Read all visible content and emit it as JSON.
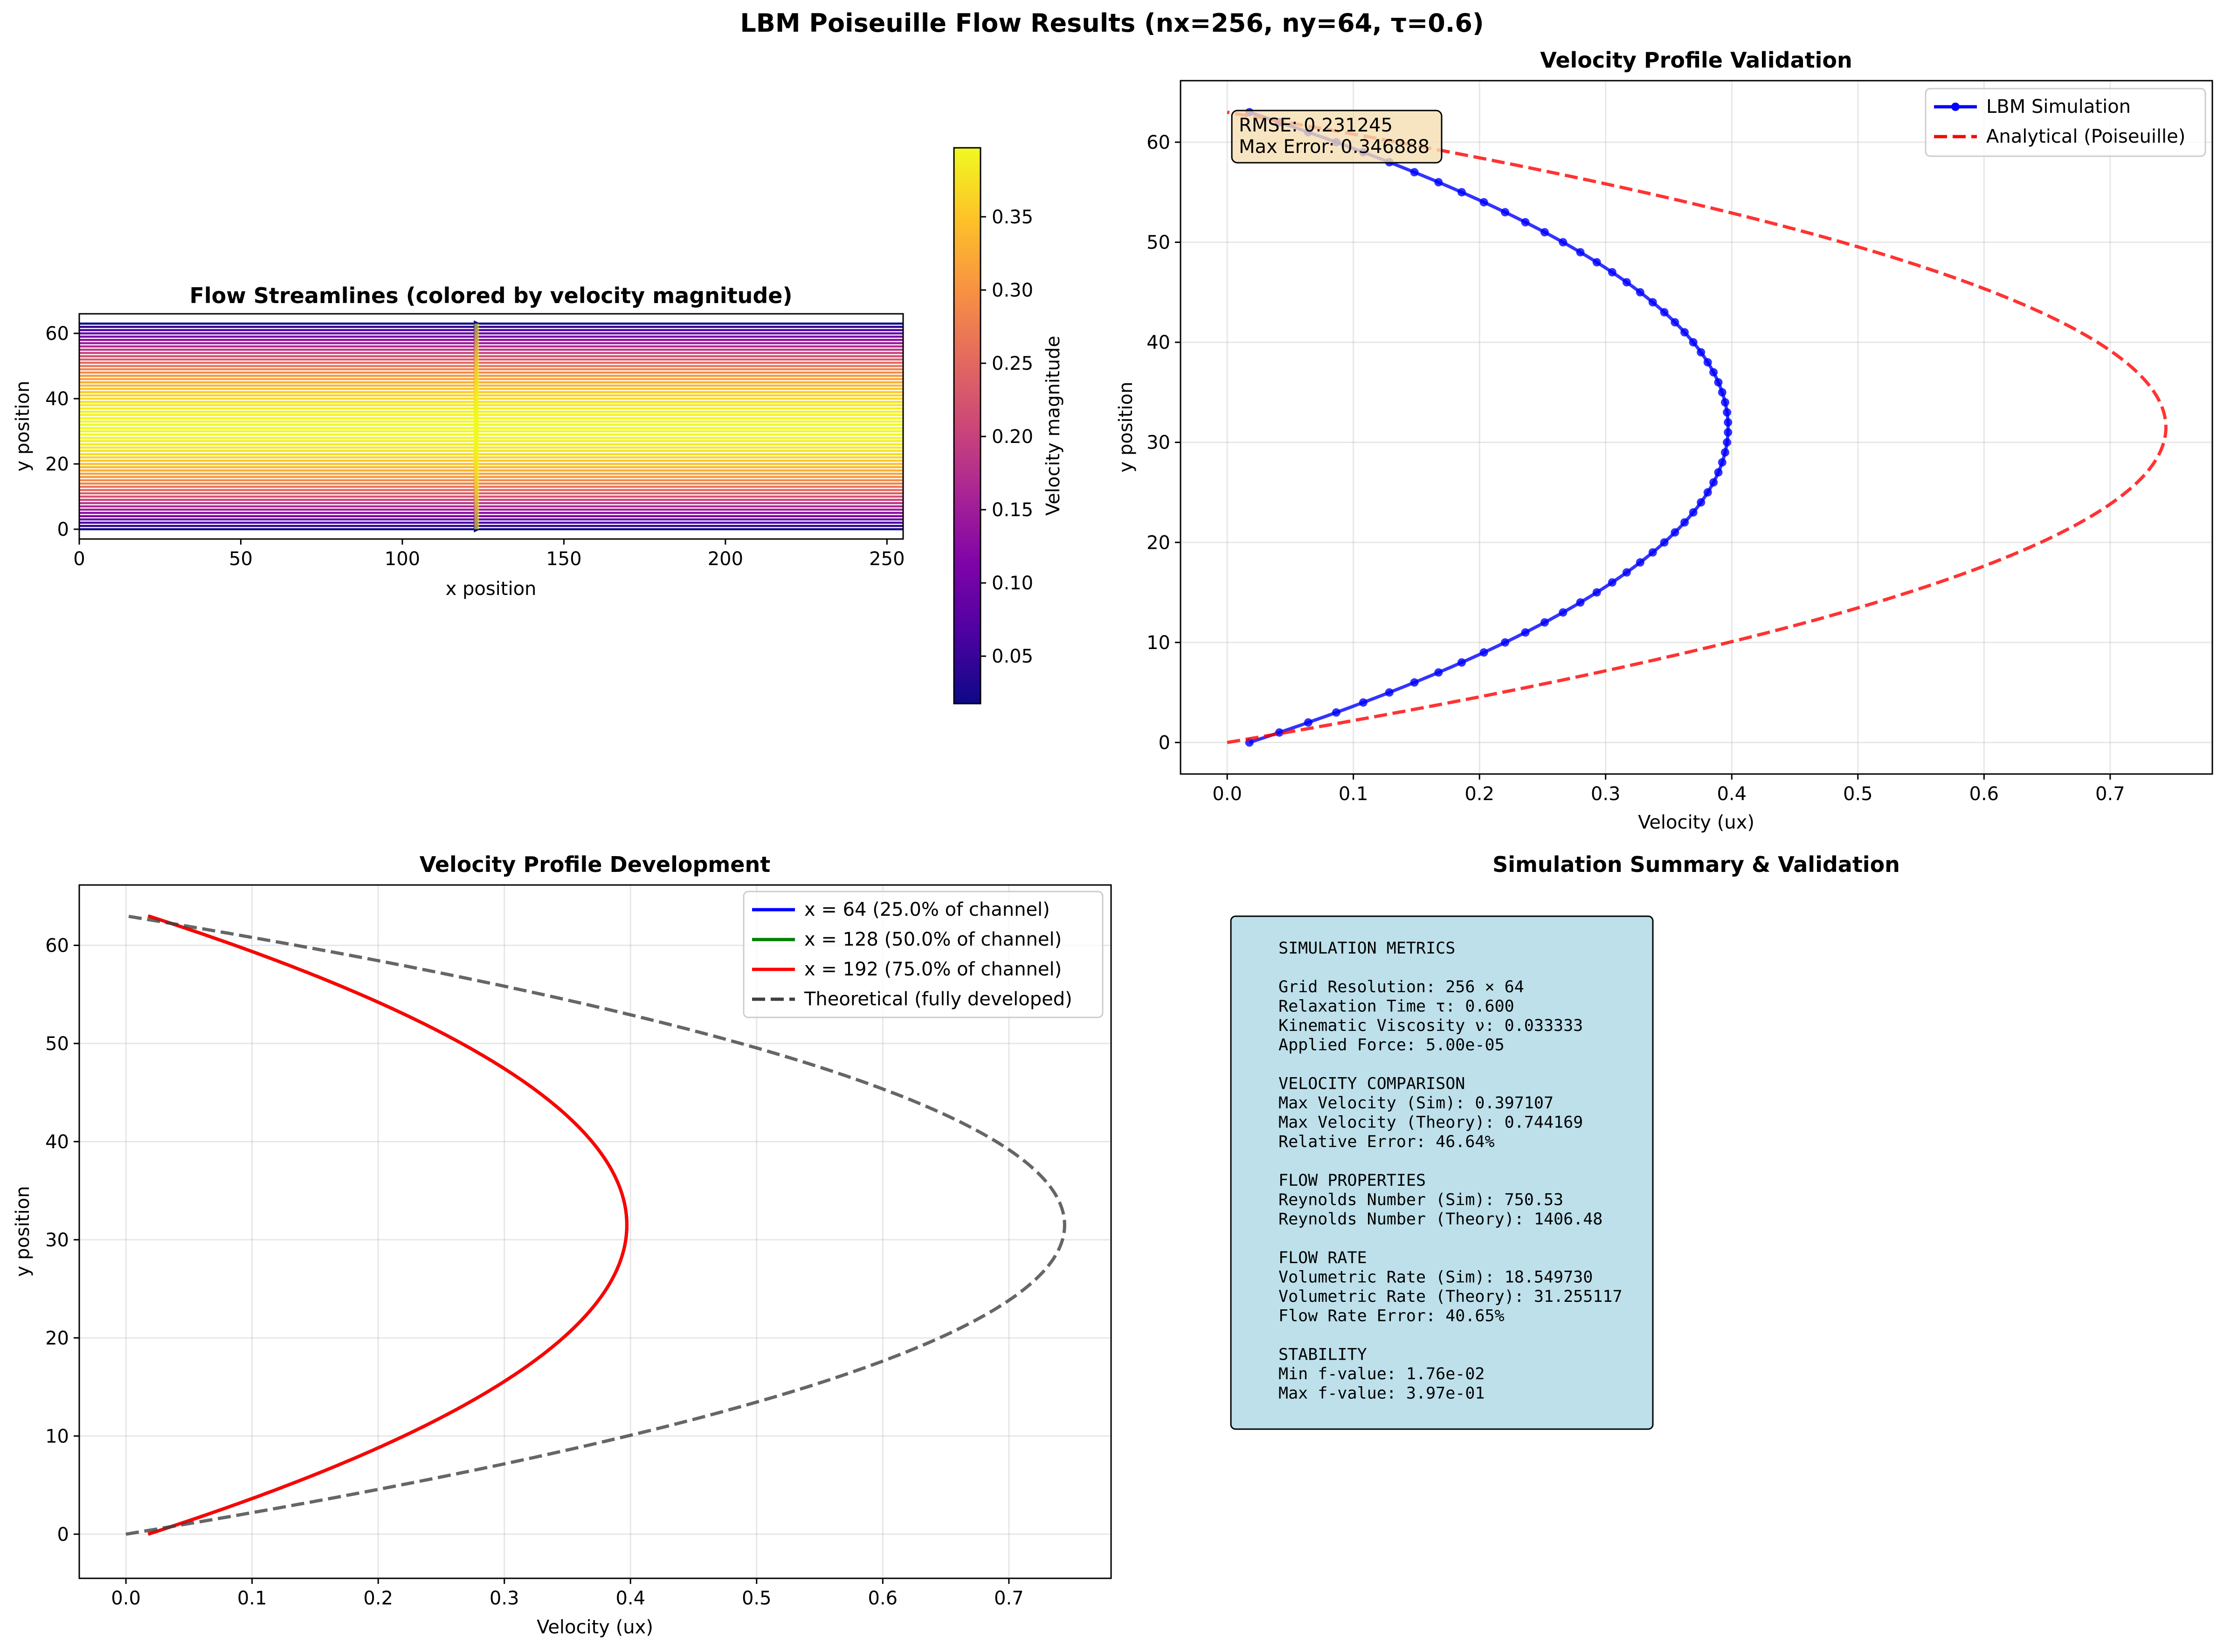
{
  "suptitle": "LBM Poiseuille Flow Results (nx=256, ny=64, τ=0.6)",
  "colors": {
    "sim": "#0000ff",
    "analytical": "#ff0000",
    "x64": "#0000ff",
    "x128": "#008000",
    "x192": "#ff0000",
    "theory": "#404040",
    "annotation_bg": "#f5deb3",
    "summary_bg": "#add8e6",
    "colormap": "plasma"
  },
  "chart_data": [
    {
      "id": "streamlines",
      "type": "streamlines",
      "title": "Flow Streamlines (colored by velocity magnitude)",
      "xlabel": "x position",
      "ylabel": "y position",
      "xlim": [
        0,
        255
      ],
      "ylim": [
        -3,
        66
      ],
      "xticks": [
        0,
        50,
        100,
        150,
        200,
        250
      ],
      "yticks": [
        0,
        20,
        40,
        60
      ],
      "streamline_y_start": 0,
      "streamline_y_end": 63,
      "streamline_x_range": [
        0,
        255
      ],
      "seed_x": 123,
      "umax": 0.397107,
      "colorbar": {
        "label": "Velocity magnitude",
        "range": [
          0.0176,
          0.397107
        ],
        "ticks": [
          0.05,
          0.1,
          0.15,
          0.2,
          0.25,
          0.3,
          0.35
        ],
        "tick_labels": [
          "0.05",
          "0.10",
          "0.15",
          "0.20",
          "0.25",
          "0.30",
          "0.35"
        ]
      }
    },
    {
      "id": "validation",
      "type": "line",
      "title": "Velocity Profile Validation",
      "xlabel": "Velocity (ux)",
      "ylabel": "y position",
      "xlim": [
        -0.037,
        0.781
      ],
      "ylim": [
        -3.15,
        66.15
      ],
      "xticks": [
        0.0,
        0.1,
        0.2,
        0.3,
        0.4,
        0.5,
        0.6,
        0.7
      ],
      "yticks": [
        0,
        10,
        20,
        30,
        40,
        50,
        60
      ],
      "grid": true,
      "legend_position": "top-right",
      "series": [
        {
          "name": "LBM Simulation",
          "style": "line-markers",
          "y_range": [
            0,
            63
          ],
          "profile": "parabolic",
          "u_wall": 0.0176,
          "u_max": 0.397107
        },
        {
          "name": "Analytical (Poiseuille)",
          "style": "dashed",
          "y_range": [
            0,
            63
          ],
          "profile": "parabolic",
          "u_wall": 0.0,
          "u_max": 0.744169
        }
      ],
      "annotation_lines": [
        "RMSE: 0.231245",
        "Max Error: 0.346888"
      ]
    },
    {
      "id": "development",
      "type": "line",
      "title": "Velocity Profile Development",
      "xlabel": "Velocity (ux)",
      "ylabel": "y position",
      "xlim": [
        -0.037,
        0.781
      ],
      "ylim": [
        -4.5,
        66.15
      ],
      "xticks": [
        0.0,
        0.1,
        0.2,
        0.3,
        0.4,
        0.5,
        0.6,
        0.7
      ],
      "yticks": [
        0,
        10,
        20,
        30,
        40,
        50,
        60
      ],
      "grid": true,
      "legend_position": "top-right",
      "series": [
        {
          "name": "x = 64 (25.0% of channel)",
          "style": "solid",
          "y_range": [
            0,
            63
          ],
          "profile": "parabolic",
          "u_wall": 0.0176,
          "u_max": 0.397107
        },
        {
          "name": "x = 128 (50.0% of channel)",
          "style": "solid",
          "y_range": [
            0,
            63
          ],
          "profile": "parabolic",
          "u_wall": 0.0176,
          "u_max": 0.397107
        },
        {
          "name": "x = 192 (75.0% of channel)",
          "style": "solid",
          "y_range": [
            0,
            63
          ],
          "profile": "parabolic",
          "u_wall": 0.0176,
          "u_max": 0.397107
        },
        {
          "name": "Theoretical (fully developed)",
          "style": "dashed",
          "y_range": [
            0,
            63
          ],
          "profile": "parabolic",
          "u_wall": 0.0,
          "u_max": 0.744169
        }
      ]
    }
  ],
  "summary": {
    "title": "Simulation Summary & Validation",
    "lines": [
      "SIMULATION METRICS",
      "",
      "Grid Resolution: 256 × 64",
      "Relaxation Time τ: 0.600",
      "Kinematic Viscosity ν: 0.033333",
      "Applied Force: 5.00e-05",
      "",
      "VELOCITY COMPARISON",
      "Max Velocity (Sim): 0.397107",
      "Max Velocity (Theory): 0.744169",
      "Relative Error: 46.64%",
      "",
      "FLOW PROPERTIES",
      "Reynolds Number (Sim): 750.53",
      "Reynolds Number (Theory): 1406.48",
      "",
      "FLOW RATE",
      "Volumetric Rate (Sim): 18.549730",
      "Volumetric Rate (Theory): 31.255117",
      "Flow Rate Error: 40.65%",
      "",
      "STABILITY",
      "Min f-value: 1.76e-02",
      "Max f-value: 3.97e-01"
    ]
  }
}
